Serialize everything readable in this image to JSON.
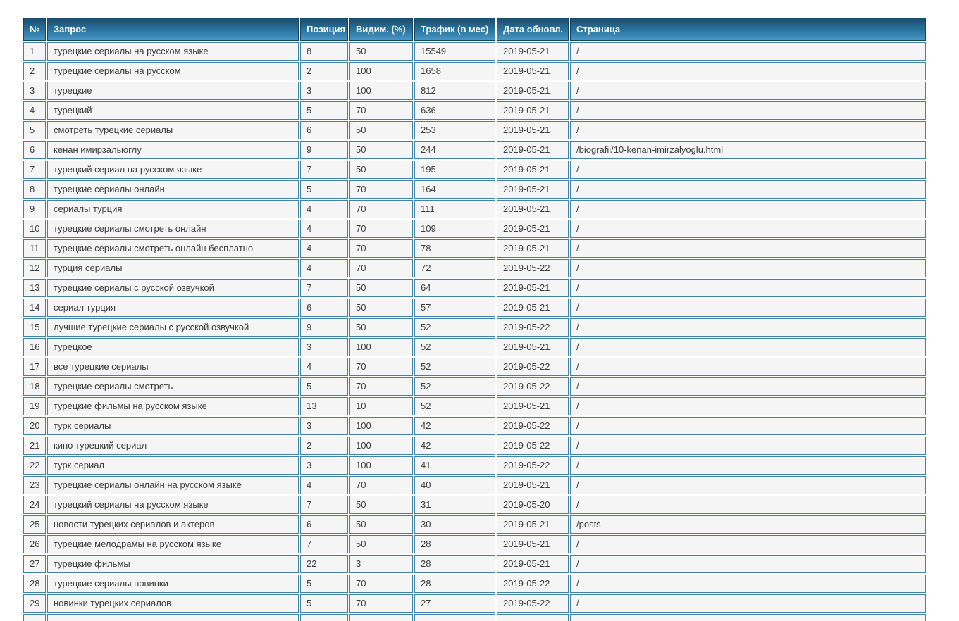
{
  "table": {
    "columns": [
      {
        "key": "num",
        "label": "№"
      },
      {
        "key": "query",
        "label": "Запрос"
      },
      {
        "key": "position",
        "label": "Позиция"
      },
      {
        "key": "visibility",
        "label": "Видим. (%)"
      },
      {
        "key": "traffic",
        "label": "Трафик (в мес)"
      },
      {
        "key": "updated",
        "label": "Дата обновл."
      },
      {
        "key": "page",
        "label": "Страница"
      }
    ],
    "rows": [
      [
        1,
        "турецкие сериалы на русском языке",
        8,
        50,
        15549,
        "2019-05-21",
        "/"
      ],
      [
        2,
        "турецкие сериалы на русском",
        2,
        100,
        1658,
        "2019-05-21",
        "/"
      ],
      [
        3,
        "турецкие",
        3,
        100,
        812,
        "2019-05-21",
        "/"
      ],
      [
        4,
        "турецкий",
        5,
        70,
        636,
        "2019-05-21",
        "/"
      ],
      [
        5,
        "смотреть турецкие сериалы",
        6,
        50,
        253,
        "2019-05-21",
        "/"
      ],
      [
        6,
        "кенан имирзалыоглу",
        9,
        50,
        244,
        "2019-05-21",
        "/biografii/10-kenan-imirzalyoglu.html"
      ],
      [
        7,
        "турецкий сериал на русском языке",
        7,
        50,
        195,
        "2019-05-21",
        "/"
      ],
      [
        8,
        "турецкие сериалы онлайн",
        5,
        70,
        164,
        "2019-05-21",
        "/"
      ],
      [
        9,
        "сериалы турция",
        4,
        70,
        111,
        "2019-05-21",
        "/"
      ],
      [
        10,
        "турецкие сериалы смотреть онлайн",
        4,
        70,
        109,
        "2019-05-21",
        "/"
      ],
      [
        11,
        "турецкие сериалы смотреть онлайн бесплатно",
        4,
        70,
        78,
        "2019-05-21",
        "/"
      ],
      [
        12,
        "турция сериалы",
        4,
        70,
        72,
        "2019-05-22",
        "/"
      ],
      [
        13,
        "турецкие сериалы с русской озвучкой",
        7,
        50,
        64,
        "2019-05-21",
        "/"
      ],
      [
        14,
        "сериал турция",
        6,
        50,
        57,
        "2019-05-21",
        "/"
      ],
      [
        15,
        "лучшие турецкие сериалы с русской озвучкой",
        9,
        50,
        52,
        "2019-05-22",
        "/"
      ],
      [
        16,
        "турецкое",
        3,
        100,
        52,
        "2019-05-21",
        "/"
      ],
      [
        17,
        "все турецкие сериалы",
        4,
        70,
        52,
        "2019-05-22",
        "/"
      ],
      [
        18,
        "турецкие сериалы смотреть",
        5,
        70,
        52,
        "2019-05-22",
        "/"
      ],
      [
        19,
        "турецкие фильмы на русском языке",
        13,
        10,
        52,
        "2019-05-21",
        "/"
      ],
      [
        20,
        "турк сериалы",
        3,
        100,
        42,
        "2019-05-22",
        "/"
      ],
      [
        21,
        "кино турецкий сериал",
        2,
        100,
        42,
        "2019-05-22",
        "/"
      ],
      [
        22,
        "турк сериал",
        3,
        100,
        41,
        "2019-05-22",
        "/"
      ],
      [
        23,
        "турецкие сериалы онлайн на русском языке",
        4,
        70,
        40,
        "2019-05-21",
        "/"
      ],
      [
        24,
        "турецкий сериалы на русском языке",
        7,
        50,
        31,
        "2019-05-20",
        "/"
      ],
      [
        25,
        "новости турецких сериалов и актеров",
        6,
        50,
        30,
        "2019-05-21",
        "/posts"
      ],
      [
        26,
        "турецкие мелодрамы на русском языке",
        7,
        50,
        28,
        "2019-05-21",
        "/"
      ],
      [
        27,
        "турецкие фильмы",
        22,
        3,
        28,
        "2019-05-21",
        "/"
      ],
      [
        28,
        "турецкие сериалы новинки",
        5,
        70,
        28,
        "2019-05-22",
        "/"
      ],
      [
        29,
        "новинки турецких сериалов",
        5,
        70,
        27,
        "2019-05-22",
        "/"
      ]
    ],
    "partial_row_visible": true
  },
  "colors": {
    "header_gradient_top": "#174e70",
    "header_gradient_bottom": "#4a98c5",
    "header_border": "#16445f",
    "header_text": "#ffffff",
    "cell_border": "#4083a4",
    "cell_background": "#f5f5f5",
    "cell_text": "#3d3d3d",
    "page_background": "#ffffff"
  }
}
